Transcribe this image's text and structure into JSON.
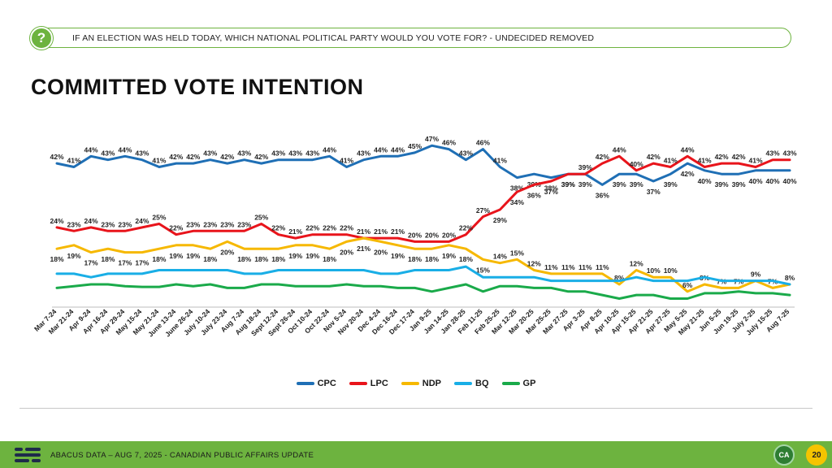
{
  "header": {
    "question_icon": "?",
    "question": "IF AN ELECTION WAS HELD TODAY, WHICH NATIONAL POLITICAL PARTY WOULD YOU VOTE FOR? - UNDECIDED REMOVED"
  },
  "title": "COMMITTED VOTE INTENTION",
  "footer": {
    "text": "ABACUS DATA – AUG 7, 2025 - CANADIAN PUBLIC AFFAIRS UPDATE",
    "badge": "CA",
    "page": "20"
  },
  "chart_data": {
    "type": "line",
    "grid": false,
    "legend_position": "bottom",
    "categories": [
      "Mar 7-24",
      "Mar 21-24",
      "Apr 9-24",
      "Apr 16-24",
      "Apr 29-24",
      "May 15-24",
      "May 21-24",
      "June 13-24",
      "June 26-24",
      "July 10-24",
      "July 23-24",
      "Aug 7-24",
      "Aug 18-24",
      "Sept 12-24",
      "Sept 26-24",
      "Oct 10-24",
      "Oct 22-24",
      "Nov 5-24",
      "Nov 20-24",
      "Dec 4-24",
      "Dec 16-24",
      "Dec 17-24",
      "Jan 9-25",
      "Jan 14-25",
      "Jan 28-25",
      "Feb 11-25",
      "Feb 25-25",
      "Mar 12-25",
      "Mar 20-25",
      "Mar 25-25",
      "Mar 27-25",
      "Apr 3-25",
      "Apr 8-25",
      "Apr 10-25",
      "Apr 15-25",
      "Apr 21-25",
      "Apr 27-25",
      "May 5-25",
      "May 21-25",
      "Jun 5-25",
      "Jun 19-25",
      "July 2-25",
      "July 15-25",
      "Aug 7-25"
    ],
    "series": [
      {
        "name": "CPC",
        "color": "#1f6fb5",
        "values": [
          42,
          41,
          44,
          43,
          44,
          43,
          41,
          42,
          42,
          43,
          42,
          43,
          42,
          43,
          43,
          43,
          44,
          41,
          43,
          44,
          44,
          45,
          47,
          46,
          43,
          46,
          41,
          38,
          39,
          38,
          39,
          39,
          36,
          39,
          39,
          37,
          39,
          42,
          40,
          39,
          39,
          40,
          40,
          40
        ]
      },
      {
        "name": "LPC",
        "color": "#e8141b",
        "values": [
          24,
          23,
          24,
          23,
          23,
          24,
          25,
          22,
          23,
          23,
          23,
          23,
          25,
          22,
          21,
          22,
          22,
          22,
          21,
          21,
          21,
          20,
          20,
          20,
          22,
          27,
          29,
          34,
          36,
          37,
          39,
          39,
          42,
          44,
          40,
          42,
          41,
          44,
          41,
          42,
          42,
          41,
          43,
          43
        ]
      },
      {
        "name": "NDP",
        "color": "#f6b800",
        "values": [
          18,
          19,
          17,
          18,
          17,
          17,
          18,
          19,
          19,
          18,
          20,
          18,
          18,
          18,
          19,
          19,
          18,
          20,
          21,
          20,
          19,
          18,
          18,
          19,
          18,
          15,
          14,
          15,
          12,
          11,
          11,
          11,
          11,
          8,
          12,
          10,
          10,
          6,
          8,
          7,
          7,
          9,
          7,
          8
        ]
      },
      {
        "name": "BQ",
        "color": "#19aee6",
        "values": [
          11,
          11,
          10,
          11,
          11,
          11,
          12,
          12,
          12,
          12,
          12,
          11,
          11,
          12,
          12,
          12,
          12,
          12,
          12,
          11,
          11,
          12,
          12,
          12,
          13,
          10,
          10,
          10,
          10,
          9,
          9,
          9,
          9,
          9,
          10,
          9,
          9,
          9,
          10,
          9,
          9,
          9,
          9,
          8
        ]
      },
      {
        "name": "GP",
        "color": "#1aaa4a",
        "values": [
          7,
          7.5,
          8,
          8,
          7.5,
          7.3,
          7.3,
          8,
          7.5,
          8,
          7,
          7,
          8,
          8,
          7.5,
          7.5,
          7.5,
          8,
          7.5,
          7.5,
          7,
          7,
          6,
          7,
          8,
          6,
          7.5,
          7.5,
          7,
          7,
          6,
          6,
          5,
          4,
          5,
          5,
          4,
          4,
          5.5,
          5.5,
          6,
          5.5,
          5.5,
          5
        ]
      }
    ],
    "labels_above": {
      "CPC": "visible",
      "LPC": "visible",
      "NDP": "visible"
    }
  }
}
